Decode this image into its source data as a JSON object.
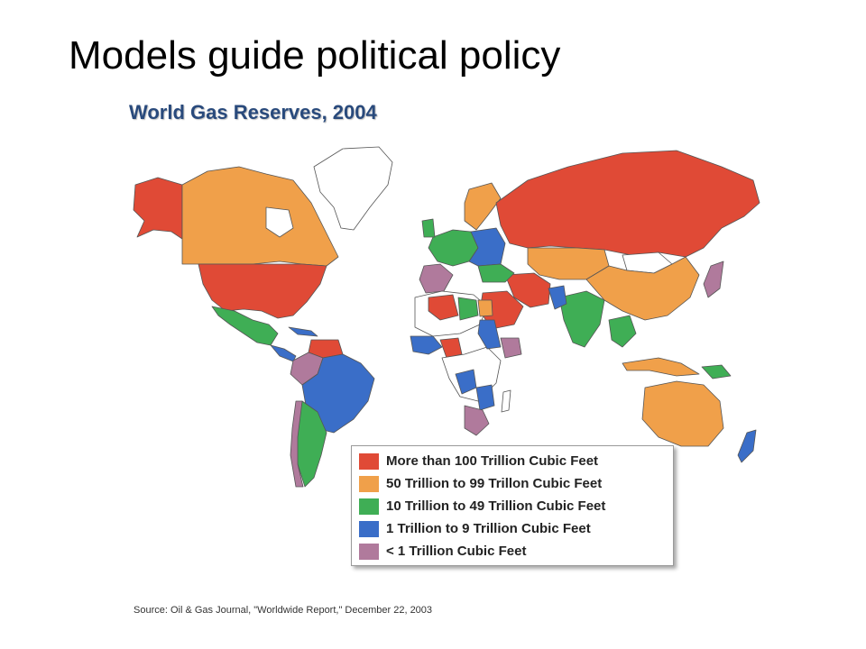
{
  "slide": {
    "title": "Models guide political policy"
  },
  "map": {
    "title": "World Gas Reserves, 2004",
    "colors": {
      "red": "#e04a36",
      "orange": "#f0a04a",
      "green": "#3fae55",
      "blue": "#3a6ec8",
      "purple": "#b07a9c",
      "white": "#ffffff",
      "ocean": "#ffffff",
      "border": "#555555"
    }
  },
  "legend": {
    "items": [
      {
        "label": "More than 100 Trillion Cubic Feet",
        "color": "#e04a36"
      },
      {
        "label": "50 Trillion to 99 Trillon Cubic Feet",
        "color": "#f0a04a"
      },
      {
        "label": "10 Trillion to 49 Trillion Cubic Feet",
        "color": "#3fae55"
      },
      {
        "label": "1 Trillion to 9 Trillion Cubic Feet",
        "color": "#3a6ec8"
      },
      {
        "label": "< 1 Trillion Cubic Feet",
        "color": "#b07a9c"
      }
    ]
  },
  "source": "Source: Oil & Gas Journal, \"Worldwide Report,\" December 22, 2003"
}
